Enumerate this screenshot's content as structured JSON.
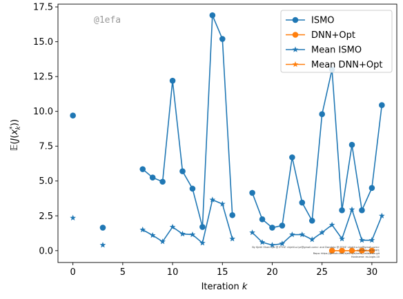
{
  "chart_data": {
    "type": "line",
    "watermark": "@1efa",
    "xlabel": "Iteration k",
    "ylabel": "𝔼(J(x_k^*))",
    "xlim": [
      -1.5,
      32.5
    ],
    "ylim": [
      -0.85,
      17.7
    ],
    "xticks": [
      0,
      5,
      10,
      15,
      20,
      25,
      30
    ],
    "yticks": [
      0.0,
      2.5,
      5.0,
      7.5,
      10.0,
      12.5,
      15.0,
      17.5
    ],
    "ytick_labels": [
      "0.0",
      "2.5",
      "5.0",
      "7.5",
      "10.0",
      "12.5",
      "15.0",
      "17.5"
    ],
    "grid": false,
    "legend_position": "top-right",
    "series": [
      {
        "name": "ISMO",
        "marker": "circle",
        "color": "#1f77b4",
        "points": [
          [
            0,
            9.7
          ],
          [
            3,
            1.65
          ],
          [
            7,
            5.85
          ],
          [
            8,
            5.25
          ],
          [
            9,
            4.95
          ],
          [
            10,
            12.2
          ],
          [
            11,
            5.7
          ],
          [
            12,
            4.45
          ],
          [
            13,
            1.7
          ],
          [
            14,
            16.9
          ],
          [
            15,
            15.2
          ],
          [
            16,
            2.55
          ],
          [
            18,
            4.15
          ],
          [
            19,
            2.25
          ],
          [
            20,
            1.65
          ],
          [
            21,
            1.8
          ],
          [
            22,
            6.7
          ],
          [
            23,
            3.45
          ],
          [
            24,
            2.15
          ],
          [
            25,
            9.8
          ],
          [
            26,
            13.0
          ],
          [
            27,
            2.9
          ],
          [
            28,
            7.6
          ],
          [
            29,
            2.9
          ],
          [
            30,
            4.5
          ],
          [
            31,
            10.45
          ]
        ]
      },
      {
        "name": "DNN+Opt",
        "marker": "circle",
        "color": "#ff7f0e",
        "points": [
          [
            26,
            0.0
          ],
          [
            27,
            0.0
          ],
          [
            28,
            0.0
          ],
          [
            29,
            0.0
          ],
          [
            30,
            0.0
          ]
        ]
      },
      {
        "name": "Mean ISMO",
        "marker": "star",
        "color": "#1f77b4",
        "points": [
          [
            0,
            2.35
          ],
          [
            3,
            0.4
          ],
          [
            7,
            1.5
          ],
          [
            8,
            1.1
          ],
          [
            9,
            0.65
          ],
          [
            10,
            1.7
          ],
          [
            11,
            1.2
          ],
          [
            12,
            1.15
          ],
          [
            13,
            0.55
          ],
          [
            14,
            3.65
          ],
          [
            15,
            3.35
          ],
          [
            16,
            0.85
          ],
          [
            18,
            1.3
          ],
          [
            19,
            0.6
          ],
          [
            20,
            0.4
          ],
          [
            21,
            0.5
          ],
          [
            22,
            1.15
          ],
          [
            23,
            1.15
          ],
          [
            24,
            0.8
          ],
          [
            25,
            1.3
          ],
          [
            26,
            1.85
          ],
          [
            27,
            0.85
          ],
          [
            28,
            2.95
          ],
          [
            29,
            0.75
          ],
          [
            30,
            0.75
          ],
          [
            31,
            2.5
          ]
        ]
      },
      {
        "name": "Mean DNN+Opt",
        "marker": "star",
        "color": "#ff7f0e",
        "points": [
          [
            26,
            0.0
          ],
          [
            27,
            0.0
          ],
          [
            28,
            0.0
          ],
          [
            29,
            0.0
          ],
          [
            30,
            0.0
          ]
        ]
      }
    ],
    "footnote_lines": [
      "By Kjetil Olsen Lye @ ETHZ <kjetil.o.lye@gmail.com> and Doroteja @ ETHZ <kjetil.o.lye@gmail.com>",
      "Commit: 1e1ef4f1",
      "Repo: https://github.com/kjetil-lye/ismo_validation.git",
      "Hostname: eu-login-10"
    ]
  }
}
